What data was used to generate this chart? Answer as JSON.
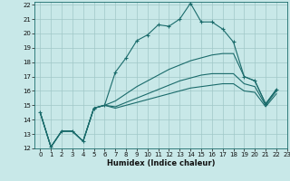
{
  "xlabel": "Humidex (Indice chaleur)",
  "xlim": [
    -0.5,
    23
  ],
  "ylim": [
    12,
    22.2
  ],
  "yticks": [
    12,
    13,
    14,
    15,
    16,
    17,
    18,
    19,
    20,
    21,
    22
  ],
  "xticks": [
    0,
    1,
    2,
    3,
    4,
    5,
    6,
    7,
    8,
    9,
    10,
    11,
    12,
    13,
    14,
    15,
    16,
    17,
    18,
    19,
    20,
    21,
    22,
    23
  ],
  "bg_color": "#c8e8e8",
  "line_color": "#1a6b6b",
  "grid_color": "#a0c8c8",
  "line1_x": [
    0,
    1,
    2,
    3,
    4,
    5,
    6,
    7,
    8,
    9,
    10,
    11,
    12,
    13,
    14,
    15,
    16,
    17,
    18,
    19,
    20,
    21,
    22
  ],
  "line1_y": [
    14.5,
    12.1,
    13.2,
    13.2,
    12.5,
    14.8,
    15.0,
    17.3,
    18.3,
    19.5,
    19.9,
    20.6,
    20.5,
    21.0,
    22.1,
    20.8,
    20.8,
    20.3,
    19.4,
    17.0,
    16.7,
    15.1,
    16.1
  ],
  "line2_x": [
    0,
    1,
    2,
    3,
    4,
    5,
    6,
    7,
    8,
    9,
    10,
    11,
    12,
    13,
    14,
    15,
    16,
    17,
    18,
    19,
    20,
    21,
    22
  ],
  "line2_y": [
    14.5,
    12.1,
    13.2,
    13.2,
    12.5,
    14.8,
    15.0,
    15.3,
    15.8,
    16.3,
    16.7,
    17.1,
    17.5,
    17.8,
    18.1,
    18.3,
    18.5,
    18.6,
    18.6,
    17.0,
    16.7,
    15.1,
    16.1
  ],
  "line3_x": [
    0,
    1,
    2,
    3,
    4,
    5,
    6,
    7,
    8,
    9,
    10,
    11,
    12,
    13,
    14,
    15,
    16,
    17,
    18,
    19,
    20,
    21,
    22
  ],
  "line3_y": [
    14.5,
    12.1,
    13.2,
    13.2,
    12.5,
    14.8,
    15.0,
    14.9,
    15.2,
    15.5,
    15.8,
    16.1,
    16.4,
    16.7,
    16.9,
    17.1,
    17.2,
    17.2,
    17.2,
    16.5,
    16.3,
    15.0,
    16.0
  ],
  "line4_x": [
    0,
    1,
    2,
    3,
    4,
    5,
    6,
    7,
    8,
    9,
    10,
    11,
    12,
    13,
    14,
    15,
    16,
    17,
    18,
    19,
    20,
    21,
    22
  ],
  "line4_y": [
    14.5,
    12.1,
    13.2,
    13.2,
    12.5,
    14.8,
    15.0,
    14.8,
    15.0,
    15.2,
    15.4,
    15.6,
    15.8,
    16.0,
    16.2,
    16.3,
    16.4,
    16.5,
    16.5,
    16.0,
    15.9,
    14.9,
    15.8
  ]
}
